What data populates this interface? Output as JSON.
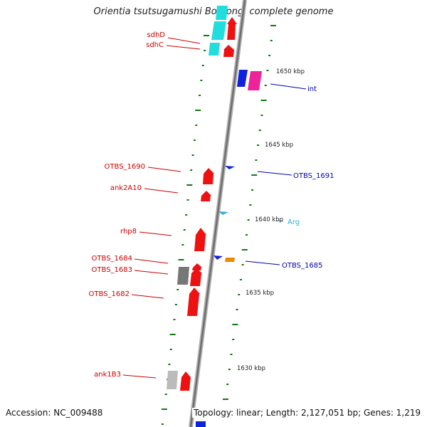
{
  "title": "Orientia tsutsugamushi Boryong, complete genome",
  "accession": "Accession: NC_009488",
  "summary": "Topology: linear; Length: 2,127,051 bp; Genes: 1,219",
  "colors": {
    "left_label": "#cc0000",
    "right_label": "#0000aa",
    "trna_label": "#33aadd",
    "tick_mark": "#117711",
    "backbone": "#8a8a8a",
    "gene_red": "#ee1111",
    "gene_pink": "#ee2299",
    "gene_cyan": "#22dddd",
    "gene_blue": "#1122dd",
    "gene_gray": "#999999",
    "gene_orange": "#ee8800"
  },
  "scale_marks": [
    {
      "label": "1650 kbp",
      "position_kbp": 1650
    },
    {
      "label": "1645 kbp",
      "position_kbp": 1645
    },
    {
      "label": "1640 kbp",
      "position_kbp": 1640
    },
    {
      "label": "1635 kbp",
      "position_kbp": 1635
    },
    {
      "label": "1630 kbp",
      "position_kbp": 1630
    }
  ],
  "gene_labels_left": [
    "sdhD",
    "sdhC",
    "OTBS_1690",
    "ank2A10",
    "rhp8",
    "OTBS_1684",
    "OTBS_1683",
    "OTBS_1682",
    "ank1B3"
  ],
  "gene_labels_right": [
    "int",
    "OTBS_1691",
    "OTBS_1685"
  ],
  "trna_labels": [
    "Arg"
  ]
}
